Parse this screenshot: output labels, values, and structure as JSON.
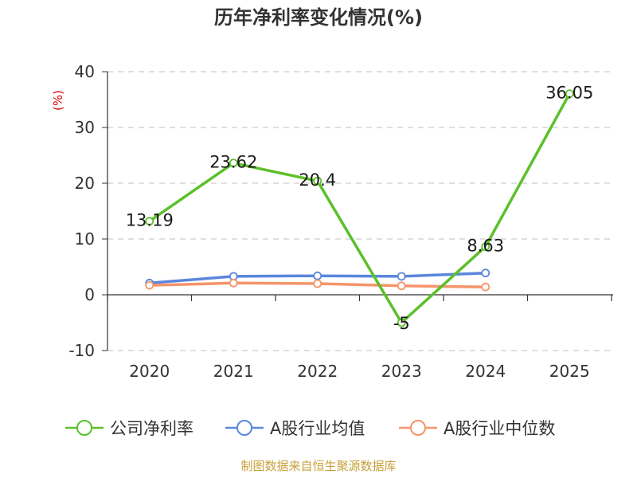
{
  "chart_data": {
    "type": "line",
    "title": "历年净利率变化情况(%)",
    "ylabel": "(%)",
    "xlabel": "",
    "categories": [
      "2020",
      "2021",
      "2022",
      "2023",
      "2024",
      "2025"
    ],
    "ylim": [
      -10,
      40
    ],
    "yticks": [
      -10,
      0,
      10,
      20,
      30,
      40
    ],
    "grid": true,
    "legend_position": "bottom",
    "series": [
      {
        "name": "公司净利率",
        "color": "#5cc02a",
        "values": [
          13.19,
          23.62,
          20.4,
          -5,
          8.63,
          36.05
        ],
        "labels": [
          "13.19",
          "23.62",
          "20.4",
          "-5",
          "8.63",
          "36.05"
        ]
      },
      {
        "name": "A股行业均值",
        "color": "#5b86dc",
        "values": [
          2.1,
          3.3,
          3.4,
          3.3,
          3.9,
          null
        ]
      },
      {
        "name": "A股行业中位数",
        "color": "#f5946a",
        "values": [
          1.7,
          2.1,
          2.0,
          1.6,
          1.4,
          null
        ]
      }
    ]
  },
  "source": "制图数据来自恒生聚源数据库"
}
